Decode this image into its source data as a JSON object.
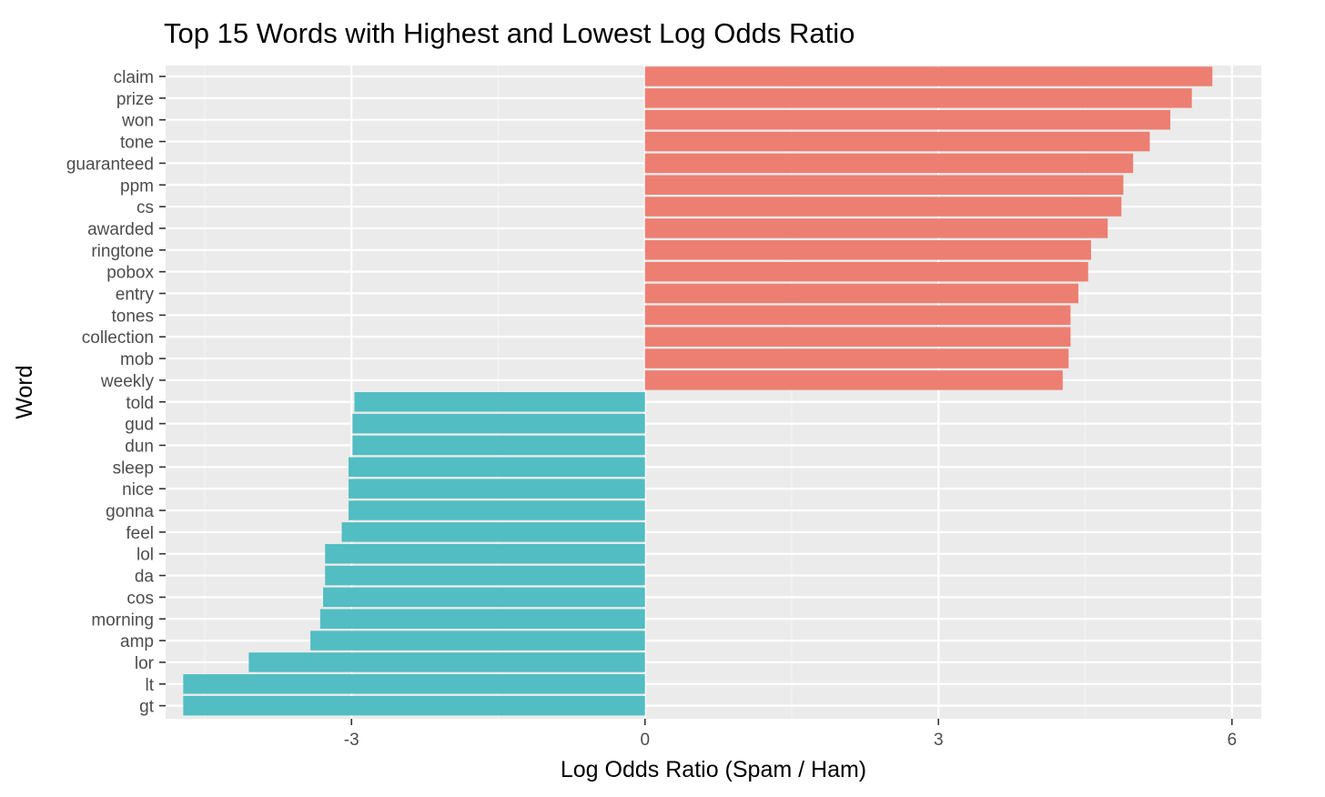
{
  "chart_data": {
    "type": "bar",
    "orientation": "horizontal",
    "title": "Top 15 Words with Highest and Lowest Log Odds Ratio",
    "xlabel": "Log Odds Ratio (Spam / Ham)",
    "ylabel": "Word",
    "xlim": [
      -4.9,
      6.3
    ],
    "xticks": [
      -3,
      0,
      3,
      6
    ],
    "xtick_labels": [
      "-3",
      "0",
      "3",
      "6"
    ],
    "grid": true,
    "legend": "none",
    "colors": {
      "positive": "#EC7F72",
      "negative": "#52BDC2",
      "panel": "#EBEBEB",
      "grid_major": "#FFFFFF",
      "grid_minor": "#F4F4F4"
    },
    "categories": [
      "claim",
      "prize",
      "won",
      "tone",
      "guaranteed",
      "ppm",
      "cs",
      "awarded",
      "ringtone",
      "pobox",
      "entry",
      "tones",
      "collection",
      "mob",
      "weekly",
      "told",
      "gud",
      "dun",
      "sleep",
      "nice",
      "gonna",
      "feel",
      "lol",
      "da",
      "cos",
      "morning",
      "amp",
      "lor",
      "lt",
      "gt"
    ],
    "values": [
      5.8,
      5.59,
      5.37,
      5.16,
      4.99,
      4.89,
      4.87,
      4.73,
      4.56,
      4.53,
      4.43,
      4.35,
      4.35,
      4.33,
      4.27,
      -2.97,
      -2.99,
      -2.99,
      -3.03,
      -3.03,
      -3.03,
      -3.1,
      -3.27,
      -3.27,
      -3.29,
      -3.32,
      -3.42,
      -4.05,
      -4.72,
      -4.72
    ]
  }
}
